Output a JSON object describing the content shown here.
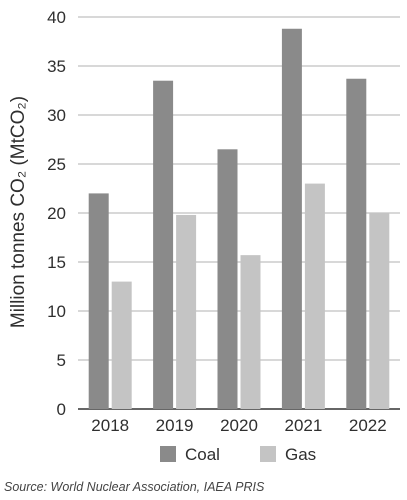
{
  "chart_data": {
    "type": "bar",
    "categories": [
      "2018",
      "2019",
      "2020",
      "2021",
      "2022"
    ],
    "series": [
      {
        "name": "Coal",
        "values": [
          22.0,
          33.5,
          26.5,
          38.8,
          33.7
        ],
        "color": "#8a8a8a"
      },
      {
        "name": "Gas",
        "values": [
          13.0,
          19.8,
          15.7,
          23.0,
          20.0
        ],
        "color": "#c4c4c4"
      }
    ],
    "ylabel": "Million tonnes CO₂ (MtCO₂)",
    "ylim": [
      0,
      40
    ],
    "yticks": [
      "0",
      "5",
      "10",
      "15",
      "20",
      "25",
      "30",
      "35",
      "40"
    ],
    "grid": true,
    "legend": "bottom",
    "source": "Source: World Nuclear Association, IAEA PRIS"
  }
}
